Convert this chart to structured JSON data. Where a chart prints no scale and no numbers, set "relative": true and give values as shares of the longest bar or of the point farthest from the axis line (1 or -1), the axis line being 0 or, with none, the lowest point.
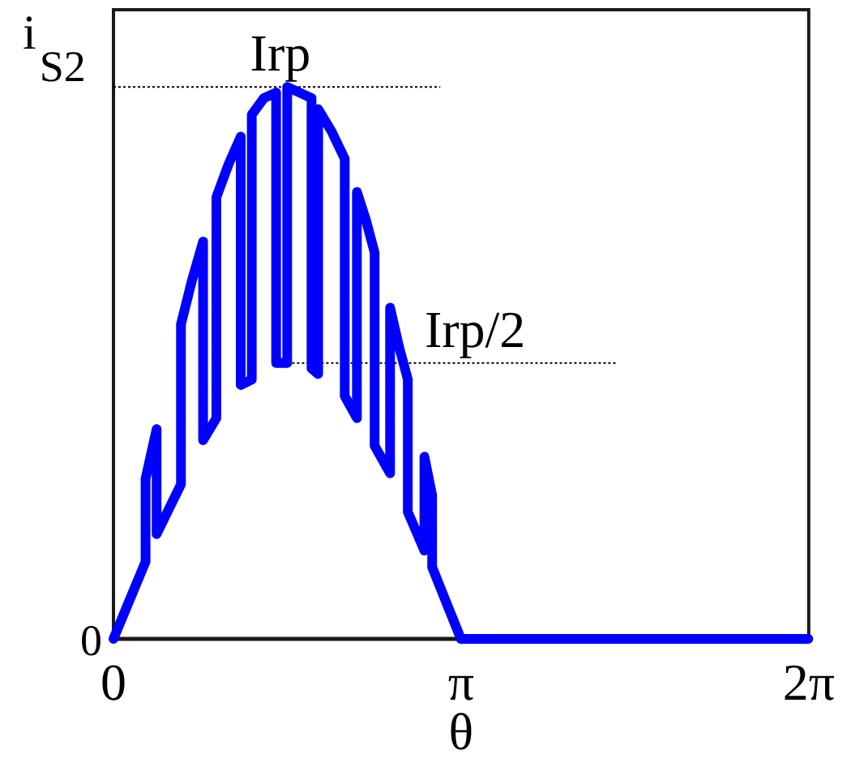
{
  "chart_data": {
    "type": "line",
    "xlabel": "θ",
    "ylabel": "i$_{S2}$",
    "relative": true,
    "x": [
      0,
      0.29,
      0.29,
      0.39,
      0.39,
      0.61,
      0.61,
      0.71,
      0.81,
      0.81,
      0.93,
      0.93,
      1.04,
      1.15,
      1.15,
      1.25,
      1.25,
      1.36,
      1.47,
      1.47,
      1.57,
      1.57,
      1.68,
      1.79,
      1.79,
      1.85,
      1.85,
      1.97,
      2.09,
      2.09,
      2.2,
      2.2,
      2.28,
      2.36,
      2.36,
      2.5,
      2.5,
      2.58,
      2.66,
      2.66,
      2.81,
      2.81,
      2.88,
      2.88,
      3.02,
      3.14,
      6.28
    ],
    "series": [
      {
        "color": "#0000ff",
        "values": [
          0,
          0.14,
          0.29,
          0.38,
          0.19,
          0.28,
          0.57,
          0.65,
          0.72,
          0.36,
          0.4,
          0.8,
          0.86,
          0.91,
          0.46,
          0.47,
          0.95,
          0.98,
          0.99,
          0.5,
          0.5,
          1,
          0.99,
          0.98,
          0.49,
          0.48,
          0.96,
          0.92,
          0.87,
          0.44,
          0.4,
          0.81,
          0.76,
          0.7,
          0.35,
          0.3,
          0.6,
          0.53,
          0.47,
          0.23,
          0.16,
          0.33,
          0.26,
          0.13,
          0.06,
          0,
          0
        ]
      }
    ],
    "xlim": [
      0,
      6.2832
    ],
    "xticks": [
      0,
      {
        "value": 3.1416,
        "label": "π"
      },
      {
        "value": 6.2832,
        "label": "2π"
      }
    ],
    "ref_lines": [
      {
        "axis": "y",
        "value": 1,
        "label": "Irp",
        "color": "#000000",
        "line_style": "dotted"
      },
      {
        "axis": "y",
        "value": 0.5,
        "label": "Irp/2",
        "color": "#000000",
        "line_style": "dotted"
      }
    ],
    "annotations": [
      "0"
    ],
    "marker": "none",
    "line_style": "solid"
  }
}
